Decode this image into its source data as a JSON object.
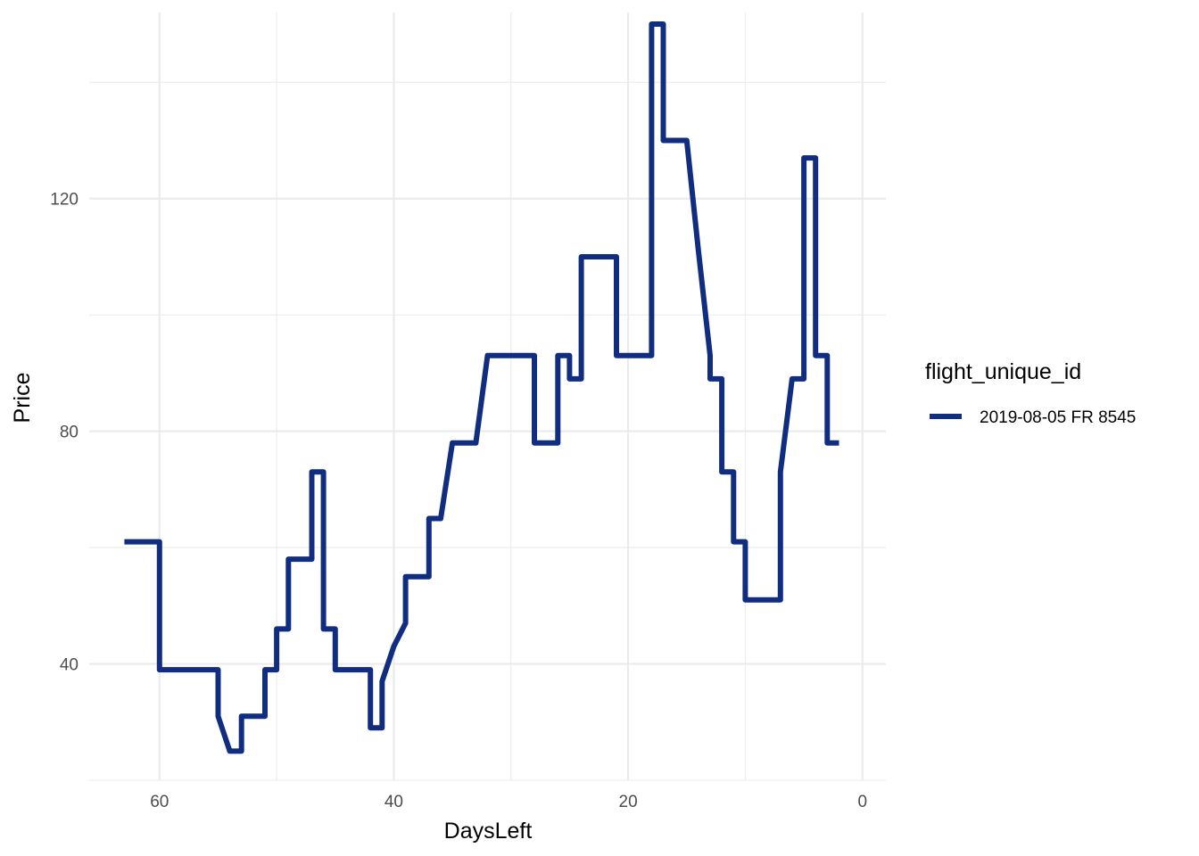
{
  "chart_data": {
    "type": "line",
    "title": "",
    "xlabel": "DaysLeft",
    "ylabel": "Price",
    "x_reversed": true,
    "xlim": [
      66,
      -2
    ],
    "ylim": [
      20,
      152
    ],
    "x_ticks": [
      60,
      40,
      20,
      0
    ],
    "y_ticks": [
      40,
      80,
      120
    ],
    "grid": true,
    "legend_title": "flight_unique_id",
    "legend_position": "right",
    "series": [
      {
        "name": "2019-08-05 FR 8545",
        "color": "#112d80",
        "x": [
          63,
          60,
          60,
          55,
          55,
          54,
          53,
          53,
          51,
          51,
          50,
          50,
          49,
          49,
          47,
          47,
          46,
          46,
          45,
          45,
          42,
          42,
          41,
          41,
          40,
          39,
          39,
          37,
          37,
          36,
          35,
          33,
          32,
          28,
          28,
          26,
          26,
          25,
          25,
          24,
          24,
          21,
          21,
          18,
          18,
          17,
          17,
          15,
          14,
          13,
          13,
          12,
          12,
          11,
          11,
          10,
          10,
          7,
          7,
          6,
          5,
          5,
          4,
          4,
          3,
          3,
          2
        ],
        "y": [
          61,
          61,
          39,
          39,
          31,
          25,
          25,
          31,
          31,
          39,
          39,
          46,
          46,
          58,
          58,
          73,
          73,
          46,
          46,
          39,
          39,
          29,
          29,
          37,
          43,
          47,
          55,
          55,
          65,
          65,
          78,
          78,
          93,
          93,
          78,
          78,
          93,
          93,
          89,
          89,
          110,
          110,
          93,
          93,
          150,
          150,
          130,
          130,
          111,
          93,
          89,
          89,
          73,
          73,
          61,
          61,
          51,
          51,
          73,
          89,
          89,
          127,
          127,
          93,
          93,
          78,
          78
        ]
      }
    ]
  }
}
